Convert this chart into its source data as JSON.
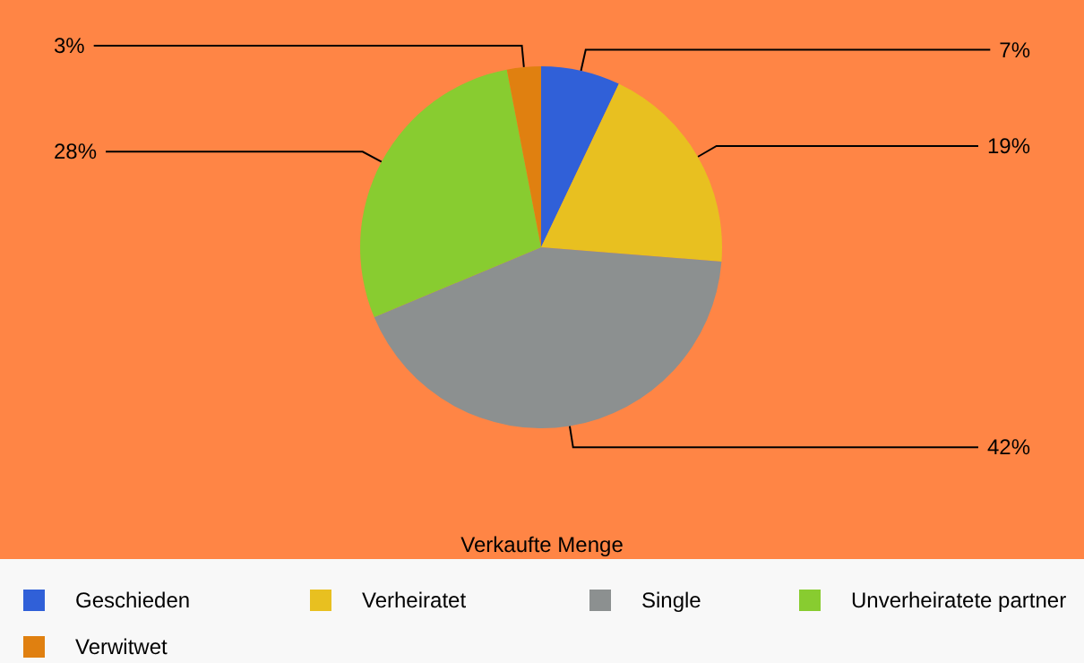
{
  "chart_data": {
    "type": "pie",
    "title": "Verkaufte Menge",
    "categories": [
      "Geschieden",
      "Verheiratet",
      "Single",
      "Unverheiratete partner",
      "Verwitwet"
    ],
    "values": [
      7,
      19,
      42,
      28,
      3
    ],
    "colors": [
      "#3060d8",
      "#e8c020",
      "#8c9090",
      "#88cc30",
      "#e08010"
    ],
    "value_labels": [
      "7%",
      "19%",
      "42%",
      "28%",
      "3%"
    ],
    "legend": "bottom"
  }
}
